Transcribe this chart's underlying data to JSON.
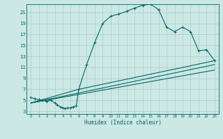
{
  "xlabel": "Humidex (Indice chaleur)",
  "xlim": [
    -0.5,
    23.5
  ],
  "ylim": [
    2.5,
    22.5
  ],
  "yticks": [
    3,
    5,
    7,
    9,
    11,
    13,
    15,
    17,
    19,
    21
  ],
  "xticks": [
    0,
    1,
    2,
    3,
    4,
    5,
    6,
    7,
    8,
    9,
    10,
    11,
    12,
    13,
    14,
    15,
    16,
    17,
    18,
    19,
    20,
    21,
    22,
    23
  ],
  "bg_color": "#cce8e4",
  "grid_color": "#aacccc",
  "line_color": "#006666",
  "curve1_x": [
    0,
    0.5,
    1,
    1.5,
    2,
    2.5,
    3,
    3.3,
    3.7,
    4.0,
    4.3,
    4.6,
    5.0,
    5.3,
    5.7,
    6.0,
    7,
    8,
    9,
    10,
    11,
    12,
    13,
    14,
    15,
    16,
    17,
    18,
    19,
    20,
    21,
    22,
    23
  ],
  "curve1_y": [
    5.5,
    5.3,
    5.1,
    5.0,
    4.8,
    5.0,
    4.5,
    4.2,
    3.8,
    3.6,
    3.5,
    3.6,
    3.6,
    3.8,
    4.0,
    7.0,
    11.5,
    15.5,
    19.0,
    20.3,
    20.7,
    21.2,
    21.8,
    22.3,
    22.5,
    21.5,
    18.3,
    17.5,
    18.3,
    17.5,
    14.0,
    14.2,
    12.2
  ],
  "curve2_x": [
    0,
    6,
    23
  ],
  "curve2_y": [
    4.5,
    7.0,
    12.2
  ],
  "curve3_x": [
    0,
    23
  ],
  "curve3_y": [
    4.5,
    10.5
  ],
  "curve4_x": [
    0,
    23
  ],
  "curve4_y": [
    4.5,
    11.5
  ]
}
